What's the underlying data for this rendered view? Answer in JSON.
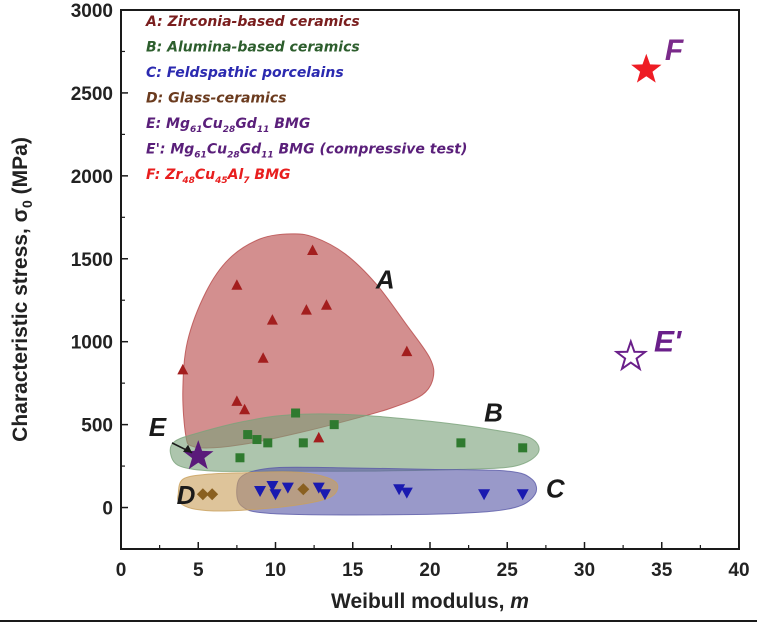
{
  "chart_data": {
    "type": "scatter",
    "xlabel": "Weibull modulus, ",
    "xlabel_var": "m",
    "ylabel": "Characteristic stress, σ",
    "ylabel_sub": "0",
    "ylabel_unit": "  (MPa)",
    "xlim": [
      0,
      40
    ],
    "ylim": [
      -250,
      3000
    ],
    "x_ticks": [
      "0",
      "5",
      "10",
      "15",
      "20",
      "25",
      "30",
      "35",
      "40"
    ],
    "y_ticks": [
      "0",
      "500",
      "1000",
      "1500",
      "2000",
      "2500",
      "3000"
    ],
    "grid": false,
    "legend_position": "top-left",
    "legend": [
      {
        "parts": [
          {
            "t": "A: Zirconia-based ceramics"
          }
        ],
        "color": "#7a1e1e"
      },
      {
        "parts": [
          {
            "t": "B: Alumina-based ceramics"
          }
        ],
        "color": "#2d5e2d"
      },
      {
        "parts": [
          {
            "t": "C: Feldspathic porcelains"
          }
        ],
        "color": "#2b2ab0"
      },
      {
        "parts": [
          {
            "t": "D: Glass-ceramics"
          }
        ],
        "color": "#6b3b1e"
      },
      {
        "parts": [
          {
            "t": "E: Mg"
          },
          {
            "t": "61",
            "sub": true
          },
          {
            "t": "Cu"
          },
          {
            "t": "28",
            "sub": true
          },
          {
            "t": "Gd"
          },
          {
            "t": "11",
            "sub": true
          },
          {
            "t": " BMG"
          }
        ],
        "color": "#5a1f7a"
      },
      {
        "parts": [
          {
            "t": "E': Mg"
          },
          {
            "t": "61",
            "sub": true
          },
          {
            "t": "Cu"
          },
          {
            "t": "28",
            "sub": true
          },
          {
            "t": "Gd"
          },
          {
            "t": "11",
            "sub": true
          },
          {
            "t": " BMG  (compressive test)"
          }
        ],
        "color": "#5a1f7a"
      },
      {
        "parts": [
          {
            "t": "F: Zr"
          },
          {
            "t": "48",
            "sub": true
          },
          {
            "t": "Cu"
          },
          {
            "t": "45",
            "sub": true
          },
          {
            "t": "Al"
          },
          {
            "t": "7",
            "sub": true
          },
          {
            "t": " BMG"
          }
        ],
        "color": "#e81e1e"
      }
    ],
    "series": [
      {
        "name": "A: Zirconia-based ceramics",
        "marker": "triangle-up",
        "color": "#a31e1e",
        "x": [
          4.0,
          7.5,
          7.5,
          8.0,
          9.2,
          9.8,
          12.0,
          12.4,
          12.8,
          13.3,
          18.5
        ],
        "y": [
          830,
          1340,
          640,
          590,
          900,
          1130,
          1190,
          1550,
          420,
          1220,
          940
        ]
      },
      {
        "name": "B: Alumina-based ceramics",
        "marker": "square",
        "color": "#2f7a2f",
        "x": [
          7.7,
          8.2,
          8.8,
          9.5,
          11.3,
          11.8,
          13.8,
          22.0,
          26.0
        ],
        "y": [
          300,
          440,
          410,
          390,
          570,
          390,
          500,
          390,
          360
        ]
      },
      {
        "name": "C: Feldspathic porcelains",
        "marker": "triangle-down",
        "color": "#1a1ab0",
        "x": [
          9.0,
          9.8,
          10.0,
          10.8,
          12.8,
          13.2,
          18.0,
          18.5,
          23.5,
          26.0
        ],
        "y": [
          100,
          130,
          80,
          120,
          120,
          80,
          110,
          90,
          80,
          80
        ]
      },
      {
        "name": "D: Glass-ceramics",
        "marker": "diamond",
        "color": "#8a6020",
        "x": [
          5.3,
          5.9,
          11.8
        ],
        "y": [
          80,
          80,
          110
        ]
      },
      {
        "name": "E: Mg61Cu28Gd11 BMG",
        "marker": "star",
        "color": "#5a1a7a",
        "x": [
          5.0
        ],
        "y": [
          310
        ]
      },
      {
        "name": "E': Mg61Cu28Gd11 BMG (compressive test)",
        "marker": "star-open",
        "color": "#6a1f8a",
        "x": [
          33.0
        ],
        "y": [
          910
        ]
      },
      {
        "name": "F: Zr48Cu45Al7 BMG",
        "marker": "star",
        "color": "#ee1c24",
        "x": [
          34.0
        ],
        "y": [
          2640
        ]
      }
    ],
    "regions": [
      {
        "label": "A",
        "fill": "#b84a4a",
        "points": [
          [
            4.2,
            430
          ],
          [
            4.0,
            700
          ],
          [
            4.3,
            1000
          ],
          [
            5.5,
            1300
          ],
          [
            7.0,
            1500
          ],
          [
            9.0,
            1620
          ],
          [
            11.0,
            1650
          ],
          [
            12.5,
            1630
          ],
          [
            14.5,
            1530
          ],
          [
            16.5,
            1350
          ],
          [
            18.5,
            1100
          ],
          [
            20.0,
            900
          ],
          [
            20.2,
            780
          ],
          [
            19.5,
            680
          ],
          [
            17.5,
            600
          ],
          [
            14.5,
            520
          ],
          [
            11.5,
            450
          ],
          [
            8.5,
            390
          ],
          [
            6.0,
            360
          ],
          [
            4.6,
            370
          ]
        ]
      },
      {
        "label": "B",
        "fill": "#7aa27a",
        "points": [
          [
            3.2,
            330
          ],
          [
            3.5,
            400
          ],
          [
            5.0,
            450
          ],
          [
            8.0,
            520
          ],
          [
            11.0,
            560
          ],
          [
            15.0,
            560
          ],
          [
            20.0,
            520
          ],
          [
            24.0,
            470
          ],
          [
            26.5,
            420
          ],
          [
            27.0,
            330
          ],
          [
            25.5,
            250
          ],
          [
            22.0,
            230
          ],
          [
            16.0,
            220
          ],
          [
            10.0,
            220
          ],
          [
            6.0,
            220
          ],
          [
            3.8,
            250
          ]
        ]
      },
      {
        "label": "C",
        "fill": "#5a5aa8",
        "points": [
          [
            7.5,
            120
          ],
          [
            8.0,
            200
          ],
          [
            10.0,
            240
          ],
          [
            14.0,
            240
          ],
          [
            20.0,
            230
          ],
          [
            25.0,
            220
          ],
          [
            26.6,
            170
          ],
          [
            26.8,
            80
          ],
          [
            25.5,
            0
          ],
          [
            22.0,
            -35
          ],
          [
            15.0,
            -45
          ],
          [
            9.5,
            -35
          ],
          [
            7.8,
            10
          ]
        ]
      },
      {
        "label": "D",
        "fill": "#c9a05c",
        "points": [
          [
            3.7,
            80
          ],
          [
            4.0,
            170
          ],
          [
            5.5,
            200
          ],
          [
            8.0,
            210
          ],
          [
            11.0,
            215
          ],
          [
            13.0,
            190
          ],
          [
            14.0,
            140
          ],
          [
            13.5,
            60
          ],
          [
            11.0,
            10
          ],
          [
            7.0,
            -20
          ],
          [
            4.8,
            -10
          ],
          [
            3.8,
            30
          ]
        ]
      }
    ],
    "labels": [
      {
        "text": "A",
        "x": 16.5,
        "y": 1320,
        "style": "region"
      },
      {
        "text": "B",
        "x": 23.5,
        "y": 520,
        "style": "region"
      },
      {
        "text": "C",
        "x": 27.5,
        "y": 60,
        "style": "region"
      },
      {
        "text": "D",
        "x": 3.6,
        "y": 20,
        "style": "region"
      },
      {
        "text": "E",
        "x": 1.8,
        "y": 430,
        "style": "region"
      },
      {
        "text": "E'",
        "x": 34.5,
        "y": 940,
        "style": "big",
        "color": "#6a1f8a"
      },
      {
        "text": "F",
        "x": 35.2,
        "y": 2700,
        "style": "big",
        "color": "#7a2a8a"
      }
    ]
  }
}
